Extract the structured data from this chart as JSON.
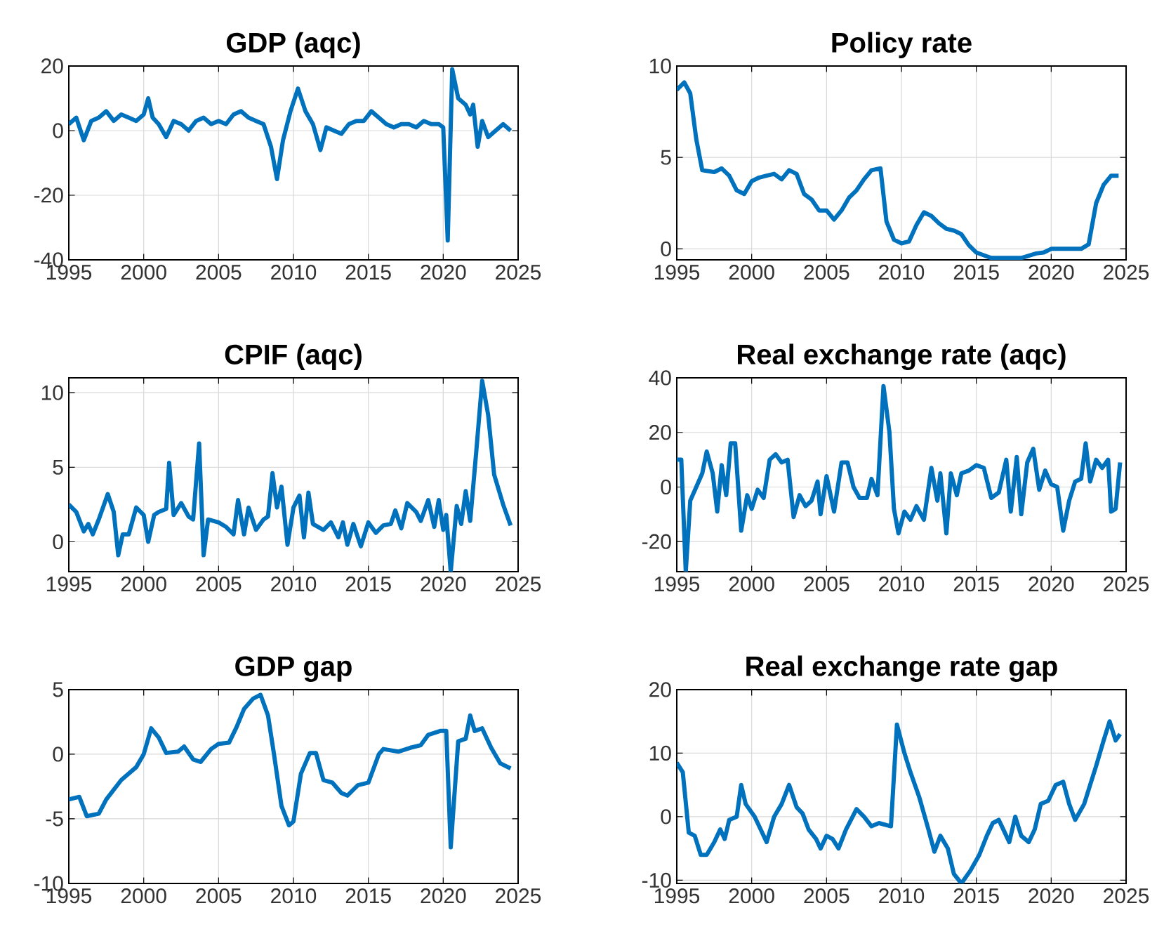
{
  "chart_data": [
    {
      "type": "line",
      "title": "GDP (aqc)",
      "xlim": [
        1995,
        2025
      ],
      "xticks": [
        1995,
        2000,
        2005,
        2010,
        2015,
        2020,
        2025
      ],
      "ylim": [
        -40,
        20
      ],
      "yticks": [
        -40,
        -20,
        0,
        20
      ],
      "grid": true,
      "x": [
        1995,
        1995.5,
        1996,
        1996.5,
        1997,
        1997.5,
        1998,
        1998.5,
        1999,
        1999.5,
        2000,
        2000.3,
        2000.6,
        2001,
        2001.5,
        2002,
        2002.5,
        2003,
        2003.5,
        2004,
        2004.5,
        2005,
        2005.5,
        2006,
        2006.5,
        2007,
        2007.5,
        2008,
        2008.5,
        2008.9,
        2009.3,
        2009.8,
        2010.3,
        2010.8,
        2011.3,
        2011.8,
        2012.2,
        2012.7,
        2013.2,
        2013.7,
        2014.2,
        2014.7,
        2015.2,
        2015.7,
        2016.2,
        2016.7,
        2017.2,
        2017.7,
        2018.2,
        2018.7,
        2019.2,
        2019.7,
        2020.0,
        2020.3,
        2020.6,
        2021,
        2021.5,
        2021.8,
        2022,
        2022.3,
        2022.6,
        2023,
        2023.5,
        2024,
        2024.5
      ],
      "series": [
        {
          "color": "#0072bd",
          "values": [
            2,
            4,
            -3,
            3,
            4,
            6,
            3,
            5,
            4,
            3,
            5,
            10,
            4,
            2,
            -2,
            3,
            2,
            0,
            3,
            4,
            2,
            3,
            2,
            5,
            6,
            4,
            3,
            2,
            -5,
            -15,
            -3,
            6,
            13,
            6,
            2,
            -6,
            1,
            0,
            -1,
            2,
            3,
            3,
            6,
            4,
            2,
            1,
            2,
            2,
            1,
            3,
            2,
            2,
            1,
            -34,
            19,
            10,
            8,
            5,
            8,
            -5,
            3,
            -2,
            0,
            2,
            0
          ]
        }
      ]
    },
    {
      "type": "line",
      "title": "Policy rate",
      "xlim": [
        1995,
        2025
      ],
      "xticks": [
        1995,
        2000,
        2005,
        2010,
        2015,
        2020,
        2025
      ],
      "ylim": [
        -0.6,
        10
      ],
      "yticks": [
        0,
        5,
        10
      ],
      "grid": true,
      "x": [
        1995,
        1995.5,
        1995.9,
        1996.3,
        1996.7,
        1997.5,
        1998,
        1998.5,
        1999,
        1999.5,
        2000,
        2000.5,
        2001,
        2001.5,
        2002,
        2002.5,
        2003,
        2003.5,
        2004,
        2004.5,
        2005,
        2005.5,
        2006,
        2006.5,
        2007,
        2007.5,
        2008,
        2008.6,
        2009,
        2009.5,
        2010,
        2010.5,
        2011,
        2011.5,
        2012,
        2012.5,
        2013,
        2013.5,
        2014,
        2014.5,
        2015,
        2015.5,
        2016,
        2017,
        2018,
        2019,
        2019.5,
        2020,
        2021,
        2022,
        2022.5,
        2023,
        2023.5,
        2024,
        2024.5
      ],
      "series": [
        {
          "color": "#0072bd",
          "values": [
            8.7,
            9.1,
            8.5,
            6,
            4.3,
            4.2,
            4.4,
            4,
            3.2,
            3,
            3.7,
            3.9,
            4,
            4.1,
            3.8,
            4.3,
            4.1,
            3,
            2.7,
            2.1,
            2.1,
            1.6,
            2.1,
            2.8,
            3.2,
            3.8,
            4.3,
            4.4,
            1.5,
            0.5,
            0.3,
            0.4,
            1.3,
            2,
            1.8,
            1.4,
            1.1,
            1.0,
            0.8,
            0.2,
            -0.2,
            -0.35,
            -0.5,
            -0.5,
            -0.5,
            -0.25,
            -0.2,
            0,
            0,
            0,
            0.25,
            2.5,
            3.5,
            4,
            4
          ]
        }
      ]
    },
    {
      "type": "line",
      "title": "CPIF (aqc)",
      "xlim": [
        1995,
        2025
      ],
      "xticks": [
        1995,
        2000,
        2005,
        2010,
        2015,
        2020,
        2025
      ],
      "ylim": [
        -2,
        11
      ],
      "yticks": [
        0,
        5,
        10
      ],
      "grid": true,
      "x": [
        1995,
        1995.5,
        1996,
        1996.3,
        1996.6,
        1997,
        1997.6,
        1998,
        1998.3,
        1998.6,
        1999,
        1999.5,
        2000,
        2000.3,
        2000.7,
        2001,
        2001.5,
        2001.7,
        2002,
        2002.5,
        2003,
        2003.3,
        2003.7,
        2004,
        2004.3,
        2005,
        2005.5,
        2006,
        2006.3,
        2006.7,
        2007,
        2007.5,
        2008,
        2008.3,
        2008.6,
        2008.9,
        2009.2,
        2009.6,
        2010,
        2010.4,
        2010.7,
        2011,
        2011.3,
        2012,
        2012.5,
        2013,
        2013.3,
        2013.6,
        2014,
        2014.5,
        2015,
        2015.5,
        2016,
        2016.5,
        2016.8,
        2017.2,
        2017.6,
        2018.2,
        2018.5,
        2019,
        2019.4,
        2019.7,
        2020,
        2020.2,
        2020.5,
        2020.9,
        2021.2,
        2021.5,
        2021.8,
        2022.2,
        2022.6,
        2023,
        2023.4,
        2024,
        2024.5
      ],
      "series": [
        {
          "color": "#0072bd",
          "values": [
            2.5,
            2,
            0.7,
            1.2,
            0.5,
            1.5,
            3.2,
            2,
            -0.9,
            0.5,
            0.5,
            2.3,
            1.8,
            0,
            1.8,
            2,
            2.2,
            5.3,
            1.8,
            2.6,
            1.7,
            1.5,
            6.6,
            -0.9,
            1.5,
            1.3,
            1,
            0.5,
            2.8,
            0.5,
            2.3,
            0.8,
            1.5,
            1.7,
            4.6,
            2.3,
            3.7,
            -0.2,
            2.3,
            3.1,
            0.3,
            3.3,
            1.2,
            0.8,
            1.3,
            0.3,
            1.3,
            -0.2,
            1.2,
            -0.3,
            1.3,
            0.6,
            1.1,
            1.2,
            2.1,
            0.9,
            2.6,
            2.0,
            1.4,
            2.8,
            1,
            2.8,
            0.8,
            1.8,
            -2,
            2.4,
            1.2,
            3.4,
            1.4,
            6,
            10.8,
            8.5,
            4.5,
            2.5,
            1.1
          ]
        }
      ]
    },
    {
      "type": "line",
      "title": "Real exchange rate (aqc)",
      "xlim": [
        1995,
        2025
      ],
      "xticks": [
        1995,
        2000,
        2005,
        2010,
        2015,
        2020,
        2025
      ],
      "ylim": [
        -31,
        40
      ],
      "yticks": [
        -20,
        0,
        20,
        40
      ],
      "grid": true,
      "x": [
        1995,
        1995.3,
        1995.6,
        1995.9,
        1996.3,
        1996.7,
        1997,
        1997.4,
        1997.7,
        1998,
        1998.3,
        1998.6,
        1998.9,
        1999.3,
        1999.7,
        2000,
        2000.4,
        2000.8,
        2001.2,
        2001.6,
        2002,
        2002.4,
        2002.8,
        2003.2,
        2003.6,
        2004,
        2004.4,
        2004.6,
        2005,
        2005.5,
        2006,
        2006.4,
        2006.8,
        2007.2,
        2007.7,
        2008,
        2008.4,
        2008.8,
        2009.2,
        2009.5,
        2009.8,
        2010.2,
        2010.6,
        2011,
        2011.5,
        2012,
        2012.4,
        2012.6,
        2013,
        2013.3,
        2013.7,
        2014,
        2014.5,
        2015,
        2015.5,
        2016,
        2016.5,
        2017,
        2017.3,
        2017.7,
        2018,
        2018.4,
        2018.8,
        2019.2,
        2019.6,
        2020,
        2020.4,
        2020.8,
        2021.2,
        2021.6,
        2022,
        2022.3,
        2022.6,
        2023,
        2023.4,
        2023.8,
        2024,
        2024.3,
        2024.6
      ],
      "series": [
        {
          "color": "#0072bd",
          "values": [
            10,
            10,
            -31,
            -5,
            0,
            5,
            13,
            5,
            -9,
            8,
            -3,
            16,
            16,
            -16,
            -3,
            -8,
            -1,
            -4,
            10,
            12,
            9,
            10,
            -11,
            -3,
            -7,
            -5,
            2,
            -10,
            4,
            -9,
            9,
            9,
            0,
            -4,
            -4,
            3,
            -3,
            37,
            20,
            -8,
            -17,
            -9,
            -12,
            -7,
            -12,
            7,
            -5,
            5,
            -17,
            5,
            -3,
            5,
            6,
            8,
            7,
            -4,
            -2,
            10,
            -9,
            11,
            -10,
            9,
            14,
            -1,
            6,
            1,
            0,
            -16,
            -5,
            2,
            3,
            16,
            2,
            10,
            7,
            10,
            -9,
            -8,
            9
          ]
        }
      ]
    },
    {
      "type": "line",
      "title": "GDP gap",
      "xlim": [
        1995,
        2025
      ],
      "xticks": [
        1995,
        2000,
        2005,
        2010,
        2015,
        2020,
        2025
      ],
      "ylim": [
        -10,
        5
      ],
      "yticks": [
        -10,
        -5,
        0,
        5
      ],
      "grid": true,
      "x": [
        1995,
        1995.7,
        1996.2,
        1997,
        1997.5,
        1998.5,
        1999.5,
        2000,
        2000.5,
        2001,
        2001.5,
        2002.3,
        2002.7,
        2003.3,
        2003.8,
        2004.5,
        2005,
        2005.7,
        2006.2,
        2006.7,
        2007.3,
        2007.8,
        2008.3,
        2008.7,
        2009.2,
        2009.7,
        2010,
        2010.5,
        2011.1,
        2011.5,
        2012,
        2012.6,
        2013.2,
        2013.6,
        2014.3,
        2015,
        2015.7,
        2016,
        2017,
        2017.8,
        2018.5,
        2019,
        2019.8,
        2020.2,
        2020.5,
        2021,
        2021.5,
        2021.8,
        2022.1,
        2022.6,
        2023.2,
        2023.8,
        2024.5
      ],
      "series": [
        {
          "color": "#0072bd",
          "values": [
            -3.5,
            -3.3,
            -4.8,
            -4.6,
            -3.5,
            -2,
            -1,
            0,
            2,
            1.3,
            0.1,
            0.2,
            0.6,
            -0.4,
            -0.6,
            0.4,
            0.8,
            0.9,
            2.1,
            3.5,
            4.3,
            4.6,
            3,
            0,
            -4,
            -5.5,
            -5.2,
            -1.5,
            0.1,
            0.1,
            -2,
            -2.2,
            -3,
            -3.2,
            -2.4,
            -2.2,
            0,
            0.4,
            0.2,
            0.5,
            0.7,
            1.5,
            1.8,
            1.8,
            -7.2,
            1,
            1.2,
            3,
            1.8,
            2,
            0.5,
            -0.7,
            -1.1
          ]
        }
      ]
    },
    {
      "type": "line",
      "title": "Real exchange rate gap",
      "xlim": [
        1995,
        2025
      ],
      "xticks": [
        1995,
        2000,
        2005,
        2010,
        2015,
        2020,
        2025
      ],
      "ylim": [
        -10.5,
        20
      ],
      "yticks": [
        -10,
        0,
        10,
        20
      ],
      "grid": true,
      "x": [
        1995,
        1995.4,
        1995.8,
        1996.2,
        1996.6,
        1997,
        1997.5,
        1997.9,
        1998.2,
        1998.5,
        1999,
        1999.3,
        1999.6,
        2000.2,
        2000.6,
        2001,
        2001.5,
        2002,
        2002.5,
        2003,
        2003.4,
        2003.8,
        2004.3,
        2004.6,
        2005,
        2005.4,
        2005.8,
        2006.3,
        2007,
        2007.5,
        2008,
        2008.5,
        2009.3,
        2009.7,
        2010.2,
        2010.6,
        2011.2,
        2011.8,
        2012.2,
        2012.6,
        2013.1,
        2013.5,
        2014,
        2014.6,
        2015.2,
        2015.7,
        2016.1,
        2016.5,
        2017.2,
        2017.6,
        2018,
        2018.5,
        2018.9,
        2019.3,
        2019.8,
        2020.3,
        2020.8,
        2021.2,
        2021.6,
        2022.2,
        2022.6,
        2023,
        2023.5,
        2023.9,
        2024.3,
        2024.6
      ],
      "series": [
        {
          "color": "#0072bd",
          "values": [
            8.5,
            7,
            -2.5,
            -3,
            -6,
            -6,
            -4,
            -2,
            -3.5,
            -0.5,
            0,
            5,
            2,
            0,
            -2,
            -4,
            0,
            2,
            5,
            1.5,
            0.5,
            -2,
            -3.5,
            -5,
            -3,
            -3.5,
            -5,
            -2,
            1.2,
            0,
            -1.5,
            -1,
            -1.5,
            14.5,
            10,
            7,
            3,
            -2,
            -5.5,
            -3,
            -5,
            -9,
            -10.5,
            -8.5,
            -6,
            -3,
            -1,
            -0.5,
            -4,
            0,
            -3,
            -4,
            -2,
            2,
            2.5,
            5,
            5.5,
            2,
            -0.5,
            2,
            5,
            8,
            12,
            15,
            12,
            13
          ]
        }
      ]
    }
  ]
}
